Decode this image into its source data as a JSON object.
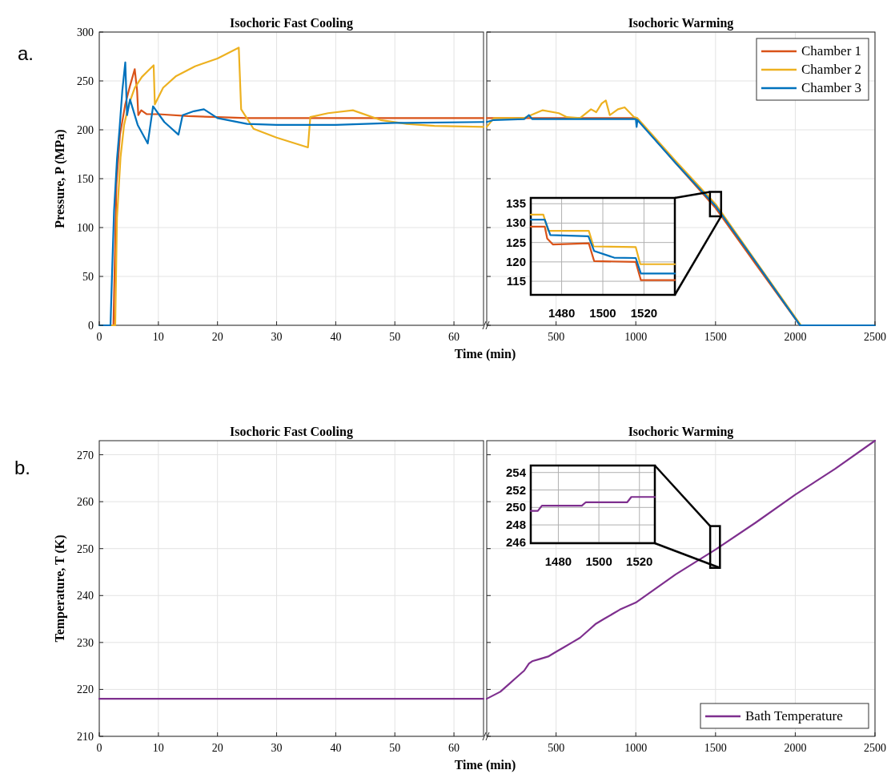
{
  "chart_data": [
    {
      "type": "line",
      "title": "Isochoric Fast Cooling",
      "ylabel": "Pressure, P (MPa)",
      "xlabel": "Time (min)",
      "annotations": [
        "a."
      ],
      "xlim": [
        0,
        65
      ],
      "xticks": [
        0,
        10,
        20,
        30,
        40,
        50,
        60
      ],
      "ylim": [
        0,
        300
      ],
      "yticks": [
        0,
        50,
        100,
        150,
        200,
        250,
        300
      ],
      "grid": true,
      "series": [
        {
          "color": "#d95319",
          "x": [
            0,
            2.4,
            2.9,
            3.5,
            4.4,
            5.2,
            6.0,
            6.4,
            6.6,
            7.1,
            8,
            10,
            15,
            20,
            25,
            30,
            40,
            50,
            65
          ],
          "values": [
            0,
            0,
            144,
            195,
            226,
            245,
            262,
            240,
            215,
            220,
            216,
            216,
            214,
            213,
            212,
            212,
            212,
            212,
            212
          ]
        },
        {
          "color": "#edb120",
          "x": [
            0,
            2.7,
            3.0,
            3.6,
            4.2,
            5.0,
            6.0,
            7.2,
            8.2,
            9.2,
            9.4,
            10.8,
            13,
            16.2,
            20,
            23.6,
            24.0,
            26.1,
            30,
            35.3,
            35.7,
            38.7,
            42.9,
            47.6,
            52,
            56.7,
            65
          ],
          "values": [
            0,
            0,
            110,
            172,
            205,
            226,
            243,
            254,
            260,
            266,
            226,
            243,
            255,
            265,
            273,
            284,
            221,
            201,
            192,
            182,
            213,
            217,
            220,
            210,
            206,
            204,
            203
          ]
        },
        {
          "color": "#0072bd",
          "x": [
            0,
            1.9,
            2.2,
            2.5,
            3.0,
            3.4,
            3.9,
            4.4,
            4.7,
            5.2,
            6.5,
            8.2,
            9.1,
            11,
            13.4,
            14.1,
            16,
            17.7,
            20,
            25,
            30,
            40,
            50,
            65
          ],
          "values": [
            0,
            0,
            60,
            117,
            170,
            199,
            240,
            269,
            215,
            231,
            205,
            186,
            224,
            208,
            195,
            215,
            219,
            221,
            212,
            206,
            205,
            205,
            207,
            208
          ]
        }
      ]
    },
    {
      "type": "line",
      "title": "Isochoric Warming",
      "xlim": [
        65,
        2500
      ],
      "xticks": [
        500,
        1000,
        1500,
        2000,
        2500
      ],
      "ylim": [
        0,
        300
      ],
      "yticks": [
        0,
        50,
        100,
        150,
        200,
        250,
        300
      ],
      "tick_labels": "x",
      "grid": true,
      "legend": "top right",
      "series": [
        {
          "name": "Chamber 1",
          "color": "#d95319",
          "x": [
            65,
            200,
            400,
            600,
            800,
            1005,
            1250,
            1500,
            1750,
            2030,
            2100,
            2500
          ],
          "values": [
            212,
            212,
            212,
            212,
            212,
            212,
            166,
            120,
            63,
            0,
            0,
            0
          ]
        },
        {
          "name": "Chamber 2",
          "color": "#edb120",
          "x": [
            65,
            110,
            300,
            416,
            517,
            568,
            650,
            719,
            752,
            786,
            812,
            837,
            888,
            930,
            989,
            1010,
            1250,
            1500,
            1750,
            2035,
            2100,
            2500
          ],
          "values": [
            203,
            212,
            212,
            220,
            217,
            213,
            212,
            221,
            218,
            227,
            230,
            215,
            221,
            223,
            213,
            212,
            168,
            124,
            66,
            0,
            0,
            0
          ]
        },
        {
          "name": "Chamber 3",
          "color": "#0072bd",
          "x": [
            65,
            110,
            300,
            330,
            350,
            600,
            800,
            1000,
            1005,
            1010,
            1250,
            1500,
            1750,
            2030,
            2100,
            2500
          ],
          "values": [
            208,
            210,
            211,
            215,
            211,
            211,
            211,
            211,
            203,
            210,
            166,
            122,
            65,
            0,
            0,
            0
          ]
        }
      ]
    },
    {
      "type": "line",
      "xlim": [
        1465,
        1535
      ],
      "xticks": [
        1480,
        1500,
        1520
      ],
      "ylim": [
        111.5,
        136.5
      ],
      "yticks": [
        115,
        120,
        125,
        130,
        135
      ],
      "grid": true,
      "series": [
        {
          "color": "#d95319",
          "x": [
            1465,
            1471.8,
            1473,
            1475.7,
            1493.2,
            1495.8,
            1516,
            1518.5,
            1535
          ],
          "values": [
            129.1,
            129.1,
            126,
            124.5,
            124.8,
            120.2,
            120,
            115.3,
            115.3
          ]
        },
        {
          "color": "#edb120",
          "x": [
            1465,
            1471.1,
            1473.5,
            1493.2,
            1495.5,
            1516,
            1518.2,
            1535
          ],
          "values": [
            132.2,
            132.2,
            128,
            128,
            124,
            123.8,
            119.4,
            119.4
          ]
        },
        {
          "color": "#0072bd",
          "x": [
            1465,
            1471.8,
            1474.5,
            1493,
            1495.8,
            1505.5,
            1516,
            1518.5,
            1535
          ],
          "values": [
            130.9,
            130.9,
            126.9,
            126.6,
            122.8,
            121.1,
            121,
            117,
            117
          ]
        }
      ]
    },
    {
      "type": "line",
      "title": "Isochoric Fast Cooling",
      "ylabel": "Temperature, T (K)",
      "xlabel": "Time (min)",
      "annotations": [
        "b."
      ],
      "xlim": [
        0,
        65
      ],
      "xticks": [
        0,
        10,
        20,
        30,
        40,
        50,
        60
      ],
      "ylim": [
        210,
        273
      ],
      "yticks": [
        210,
        220,
        230,
        240,
        250,
        260,
        270
      ],
      "grid": true,
      "series": [
        {
          "color": "#7e2f8e",
          "x": [
            0,
            65
          ],
          "values": [
            218,
            218
          ]
        }
      ]
    },
    {
      "type": "line",
      "title": "Isochoric Warming",
      "xlim": [
        65,
        2500
      ],
      "xticks": [
        500,
        1000,
        1500,
        2000,
        2500
      ],
      "ylim": [
        210,
        273
      ],
      "yticks": [
        210,
        220,
        230,
        240,
        250,
        260,
        270
      ],
      "tick_labels": "x",
      "grid": true,
      "legend": "bottom right",
      "series": [
        {
          "name": "Bath Temperature",
          "color": "#7e2f8e",
          "x": [
            65,
            150,
            200,
            250,
            300,
            330,
            350,
            400,
            450,
            500,
            550,
            600,
            650,
            700,
            750,
            800,
            900,
            1000,
            1250,
            1500,
            1750,
            2000,
            2250,
            2500
          ],
          "values": [
            218,
            219.5,
            221,
            222.5,
            224,
            225.5,
            226,
            226.5,
            227,
            228,
            229,
            230,
            231,
            232.5,
            234,
            235,
            237,
            238.5,
            244.5,
            249.8,
            255.5,
            261.5,
            267,
            273
          ]
        }
      ]
    },
    {
      "type": "line",
      "xlim": [
        1466.4,
        1527.6
      ],
      "xticks": [
        1480,
        1500,
        1520
      ],
      "ylim": [
        245.9,
        254.8
      ],
      "yticks": [
        246,
        248,
        250,
        252,
        254
      ],
      "grid": true,
      "series": [
        {
          "color": "#7e2f8e",
          "x": [
            1466.4,
            1469.9,
            1471.9,
            1491.6,
            1493.6,
            1514,
            1516,
            1527.6
          ],
          "values": [
            249.6,
            249.6,
            250.2,
            250.2,
            250.6,
            250.6,
            251.2,
            251.2
          ]
        }
      ]
    }
  ]
}
